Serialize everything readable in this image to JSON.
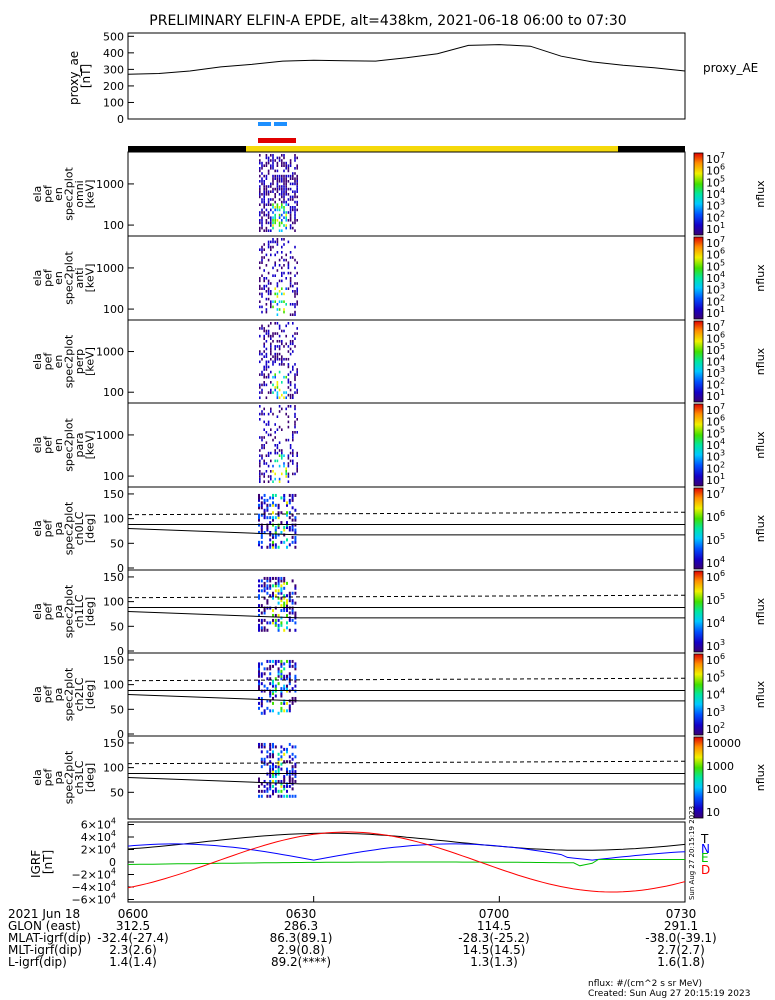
{
  "title": "PRELIMINARY ELFIN-A EPDE, alt=438km, 2021-06-18 06:00 to 07:30",
  "chart_data": {
    "type": "multi-panel time series and spectrograms",
    "time_ticks": [
      "0600",
      "0630",
      "0700",
      "0730"
    ],
    "ae_panel": {
      "ylabel_lines": [
        "proxy_ae",
        "[nT]"
      ],
      "legend": "proxy_AE",
      "yticks": [
        "500",
        "400",
        "300",
        "200",
        "100",
        "0"
      ],
      "ylim": [
        0,
        520
      ],
      "x_min": [
        0,
        5,
        10,
        15,
        20,
        25,
        30,
        35,
        40,
        45,
        50,
        55,
        60,
        65,
        70,
        75,
        80,
        85,
        90
      ],
      "y": [
        270,
        275,
        290,
        315,
        330,
        350,
        355,
        352,
        350,
        370,
        395,
        445,
        450,
        440,
        380,
        345,
        325,
        310,
        290
      ]
    },
    "energy_panels": [
      {
        "ylabel_lines": [
          "ela",
          "pef",
          "en",
          "spec2plot",
          "omni",
          "[keV]"
        ],
        "yticks": [
          "1000",
          "100"
        ],
        "cbar_ticks": [
          "10",
          "10",
          "10",
          "10",
          "10",
          "10",
          "10"
        ],
        "cbar_exps": [
          "7",
          "6",
          "5",
          "4",
          "3",
          "2",
          "1"
        ],
        "cbar_label": "nflux"
      },
      {
        "ylabel_lines": [
          "ela",
          "pef",
          "en",
          "spec2plot",
          "anti",
          "[keV]"
        ],
        "yticks": [
          "1000",
          "100"
        ],
        "cbar_ticks": [
          "10",
          "10",
          "10",
          "10",
          "10",
          "10",
          "10"
        ],
        "cbar_exps": [
          "7",
          "6",
          "5",
          "4",
          "3",
          "2",
          "1"
        ],
        "cbar_label": "nflux"
      },
      {
        "ylabel_lines": [
          "ela",
          "pef",
          "en",
          "spec2plot",
          "perp",
          "[keV]"
        ],
        "yticks": [
          "1000",
          "100"
        ],
        "cbar_ticks": [
          "10",
          "10",
          "10",
          "10",
          "10",
          "10",
          "10"
        ],
        "cbar_exps": [
          "7",
          "6",
          "5",
          "4",
          "3",
          "2",
          "1"
        ],
        "cbar_label": "nflux"
      },
      {
        "ylabel_lines": [
          "ela",
          "pef",
          "en",
          "spec2plot",
          "para",
          "[keV]"
        ],
        "yticks": [
          "1000",
          "100"
        ],
        "cbar_ticks": [
          "10",
          "10",
          "10",
          "10",
          "10",
          "10",
          "10"
        ],
        "cbar_exps": [
          "7",
          "6",
          "5",
          "4",
          "3",
          "2",
          "1"
        ],
        "cbar_label": "nflux"
      }
    ],
    "pa_panels": [
      {
        "ylabel_lines": [
          "ela",
          "pef",
          "pa",
          "spec2plot",
          "ch0LC",
          "[deg]"
        ],
        "yticks": [
          "150",
          "100",
          "50",
          "0"
        ],
        "cbar_ticks": [
          "10",
          "10",
          "10",
          "10"
        ],
        "cbar_exps": [
          "7",
          "6",
          "5",
          "4"
        ],
        "cbar_label": "nflux"
      },
      {
        "ylabel_lines": [
          "ela",
          "pef",
          "pa",
          "spec2plot",
          "ch1LC",
          "[deg]"
        ],
        "yticks": [
          "150",
          "100",
          "50",
          "0"
        ],
        "cbar_ticks": [
          "10",
          "10",
          "10",
          "10"
        ],
        "cbar_exps": [
          "6",
          "5",
          "4",
          "3"
        ],
        "cbar_label": "nflux"
      },
      {
        "ylabel_lines": [
          "ela",
          "pef",
          "pa",
          "spec2plot",
          "ch2LC",
          "[deg]"
        ],
        "yticks": [
          "150",
          "100",
          "50",
          "0"
        ],
        "cbar_ticks": [
          "10",
          "10",
          "10",
          "10",
          "10"
        ],
        "cbar_exps": [
          "6",
          "5",
          "4",
          "3",
          "2"
        ],
        "cbar_label": "nflux"
      },
      {
        "ylabel_lines": [
          "ela",
          "pef",
          "pa",
          "spec2plot",
          "ch3LC",
          "[deg]"
        ],
        "yticks": [
          "150",
          "100",
          "50"
        ],
        "cbar_ticks": [
          "10000",
          "1000",
          "100",
          "10"
        ],
        "cbar_exps": [
          "",
          "",
          "",
          ""
        ],
        "cbar_label": "nflux"
      }
    ],
    "igrf_panel": {
      "ylabel_lines": [
        "IGRF",
        "[nT]"
      ],
      "yticks": [
        "6×10",
        "4×10",
        "2×10",
        "0",
        "−2×10",
        "−4×10",
        "−6×10"
      ],
      "ytick_exp": "4",
      "legend": [
        "T",
        "N",
        "E",
        "D"
      ],
      "legend_colors": [
        "#000000",
        "#0000ff",
        "#00c000",
        "#ff0000"
      ]
    },
    "ephemeris": {
      "rows": [
        {
          "label": "2021 Jun 18",
          "values": [
            "0600",
            "0630",
            "0700",
            "0730"
          ]
        },
        {
          "label": "GLON (east)",
          "values": [
            "312.5",
            "286.3",
            "114.5",
            "291.1"
          ]
        },
        {
          "label": "MLAT-igrf(dip)",
          "values": [
            "-32.4(-27.4)",
            "86.3(89.1)",
            "-28.3(-25.2)",
            "-38.0(-39.1)"
          ]
        },
        {
          "label": "MLT-igrf(dip)",
          "values": [
            "2.3(2.6)",
            "2.9(0.8)",
            "14.5(14.5)",
            "2.7(2.7)"
          ]
        },
        {
          "label": "L-igrf(dip)",
          "values": [
            "1.4(1.4)",
            "89.2(****)",
            "1.3(1.3)",
            "1.6(1.8)"
          ]
        }
      ]
    },
    "footer": {
      "units": "nflux: #/(cm^2 s sr MeV)",
      "created": "Created: Sun Aug 27 20:15:19 2023",
      "vertical_stamp": "Sun Aug 27 20:15:19 2023"
    }
  }
}
